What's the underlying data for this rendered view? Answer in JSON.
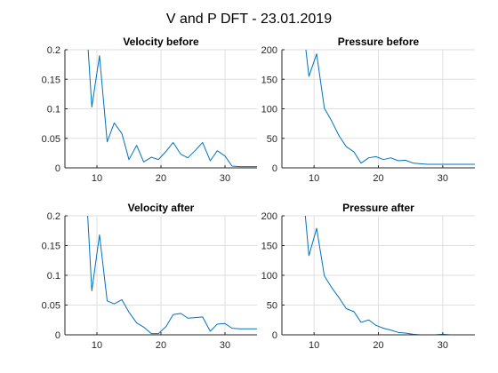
{
  "figure_title": "V and P DFT - 23.01.2019",
  "colors": {
    "line": "#0072bd",
    "axis": "#262626",
    "grid": "#dfdfdf"
  },
  "chart_data": [
    {
      "type": "line",
      "title": "Velocity before",
      "xlabel": "",
      "ylabel": "",
      "xlim": [
        5,
        35
      ],
      "ylim": [
        0,
        0.2
      ],
      "xticks": [
        10,
        20,
        30
      ],
      "yticks": [
        0,
        0.05,
        0.1,
        0.15,
        0.2
      ],
      "xtick_labels": [
        "10",
        "20",
        "30"
      ],
      "ytick_labels": [
        "0",
        "0.05",
        "0.1",
        "0.15",
        "0.2"
      ],
      "grid": true,
      "series": [
        {
          "x": [
            8.1,
            9.2,
            10.4,
            11.6,
            12.7,
            13.9,
            15.0,
            16.2,
            17.3,
            18.5,
            19.6,
            20.8,
            21.9,
            23.1,
            24.2,
            25.4,
            26.5,
            27.7,
            28.8,
            30.0,
            31.1,
            32.3,
            33.4,
            34.6,
            35.0
          ],
          "y": [
            0.29,
            0.103,
            0.19,
            0.044,
            0.076,
            0.058,
            0.014,
            0.038,
            0.01,
            0.018,
            0.014,
            0.028,
            0.043,
            0.023,
            0.017,
            0.03,
            0.043,
            0.012,
            0.029,
            0.02,
            0.003,
            0.002,
            0.002,
            0.002,
            0.002
          ]
        }
      ]
    },
    {
      "type": "line",
      "title": "Pressure before",
      "xlabel": "",
      "ylabel": "",
      "xlim": [
        5,
        35
      ],
      "ylim": [
        0,
        200
      ],
      "xticks": [
        10,
        20,
        30
      ],
      "yticks": [
        0,
        50,
        100,
        150,
        200
      ],
      "xtick_labels": [
        "10",
        "20",
        "30"
      ],
      "ytick_labels": [
        "0",
        "50",
        "100",
        "150",
        "200"
      ],
      "grid": true,
      "series": [
        {
          "x": [
            8.1,
            9.2,
            10.4,
            11.6,
            12.7,
            13.9,
            15.0,
            16.2,
            17.3,
            18.5,
            19.6,
            20.8,
            21.9,
            23.1,
            24.2,
            25.4,
            26.5,
            27.7,
            28.8,
            30.0,
            31.1,
            32.3,
            33.4,
            34.6,
            35.0
          ],
          "y": [
            260,
            155,
            193,
            101,
            80,
            54,
            36,
            27,
            8,
            17,
            19,
            14,
            17,
            12,
            13,
            8,
            7,
            6,
            6,
            6,
            6,
            6,
            6,
            6,
            6
          ]
        }
      ]
    },
    {
      "type": "line",
      "title": "Velocity after",
      "xlabel": "",
      "ylabel": "",
      "xlim": [
        5,
        35
      ],
      "ylim": [
        0,
        0.2
      ],
      "xticks": [
        10,
        20,
        30
      ],
      "yticks": [
        0,
        0.05,
        0.1,
        0.15,
        0.2
      ],
      "xtick_labels": [
        "10",
        "20",
        "30"
      ],
      "ytick_labels": [
        "0",
        "0.05",
        "0.1",
        "0.15",
        "0.2"
      ],
      "grid": true,
      "series": [
        {
          "x": [
            8.1,
            9.2,
            10.4,
            11.6,
            12.7,
            13.9,
            15.0,
            16.2,
            17.3,
            18.5,
            19.6,
            20.8,
            21.9,
            23.1,
            24.2,
            25.4,
            26.5,
            27.7,
            28.8,
            30.0,
            31.1,
            32.3,
            33.4,
            34.6,
            35.0
          ],
          "y": [
            0.29,
            0.074,
            0.168,
            0.057,
            0.052,
            0.059,
            0.038,
            0.02,
            0.013,
            0.002,
            0.002,
            0.014,
            0.034,
            0.036,
            0.028,
            0.029,
            0.03,
            0.006,
            0.018,
            0.019,
            0.011,
            0.01,
            0.01,
            0.01,
            0.01
          ]
        }
      ]
    },
    {
      "type": "line",
      "title": "Pressure after",
      "xlabel": "",
      "ylabel": "",
      "xlim": [
        5,
        35
      ],
      "ylim": [
        0,
        200
      ],
      "xticks": [
        10,
        20,
        30
      ],
      "yticks": [
        0,
        50,
        100,
        150,
        200
      ],
      "xtick_labels": [
        "10",
        "20",
        "30"
      ],
      "ytick_labels": [
        "0",
        "50",
        "100",
        "150",
        "200"
      ],
      "grid": true,
      "series": [
        {
          "x": [
            8.1,
            9.2,
            10.4,
            11.6,
            12.7,
            13.9,
            15.0,
            16.2,
            17.3,
            18.5,
            19.6,
            20.8,
            21.9,
            23.1,
            24.2,
            25.4,
            26.5,
            27.7,
            28.8,
            30.0,
            31.1,
            32.3,
            33.4,
            34.6,
            35.0
          ],
          "y": [
            265,
            133,
            179,
            99,
            80,
            62,
            44,
            39,
            21,
            25,
            16,
            11,
            8,
            4,
            3,
            1,
            0,
            0,
            0,
            1,
            0,
            0,
            0,
            0,
            0
          ]
        }
      ]
    }
  ]
}
